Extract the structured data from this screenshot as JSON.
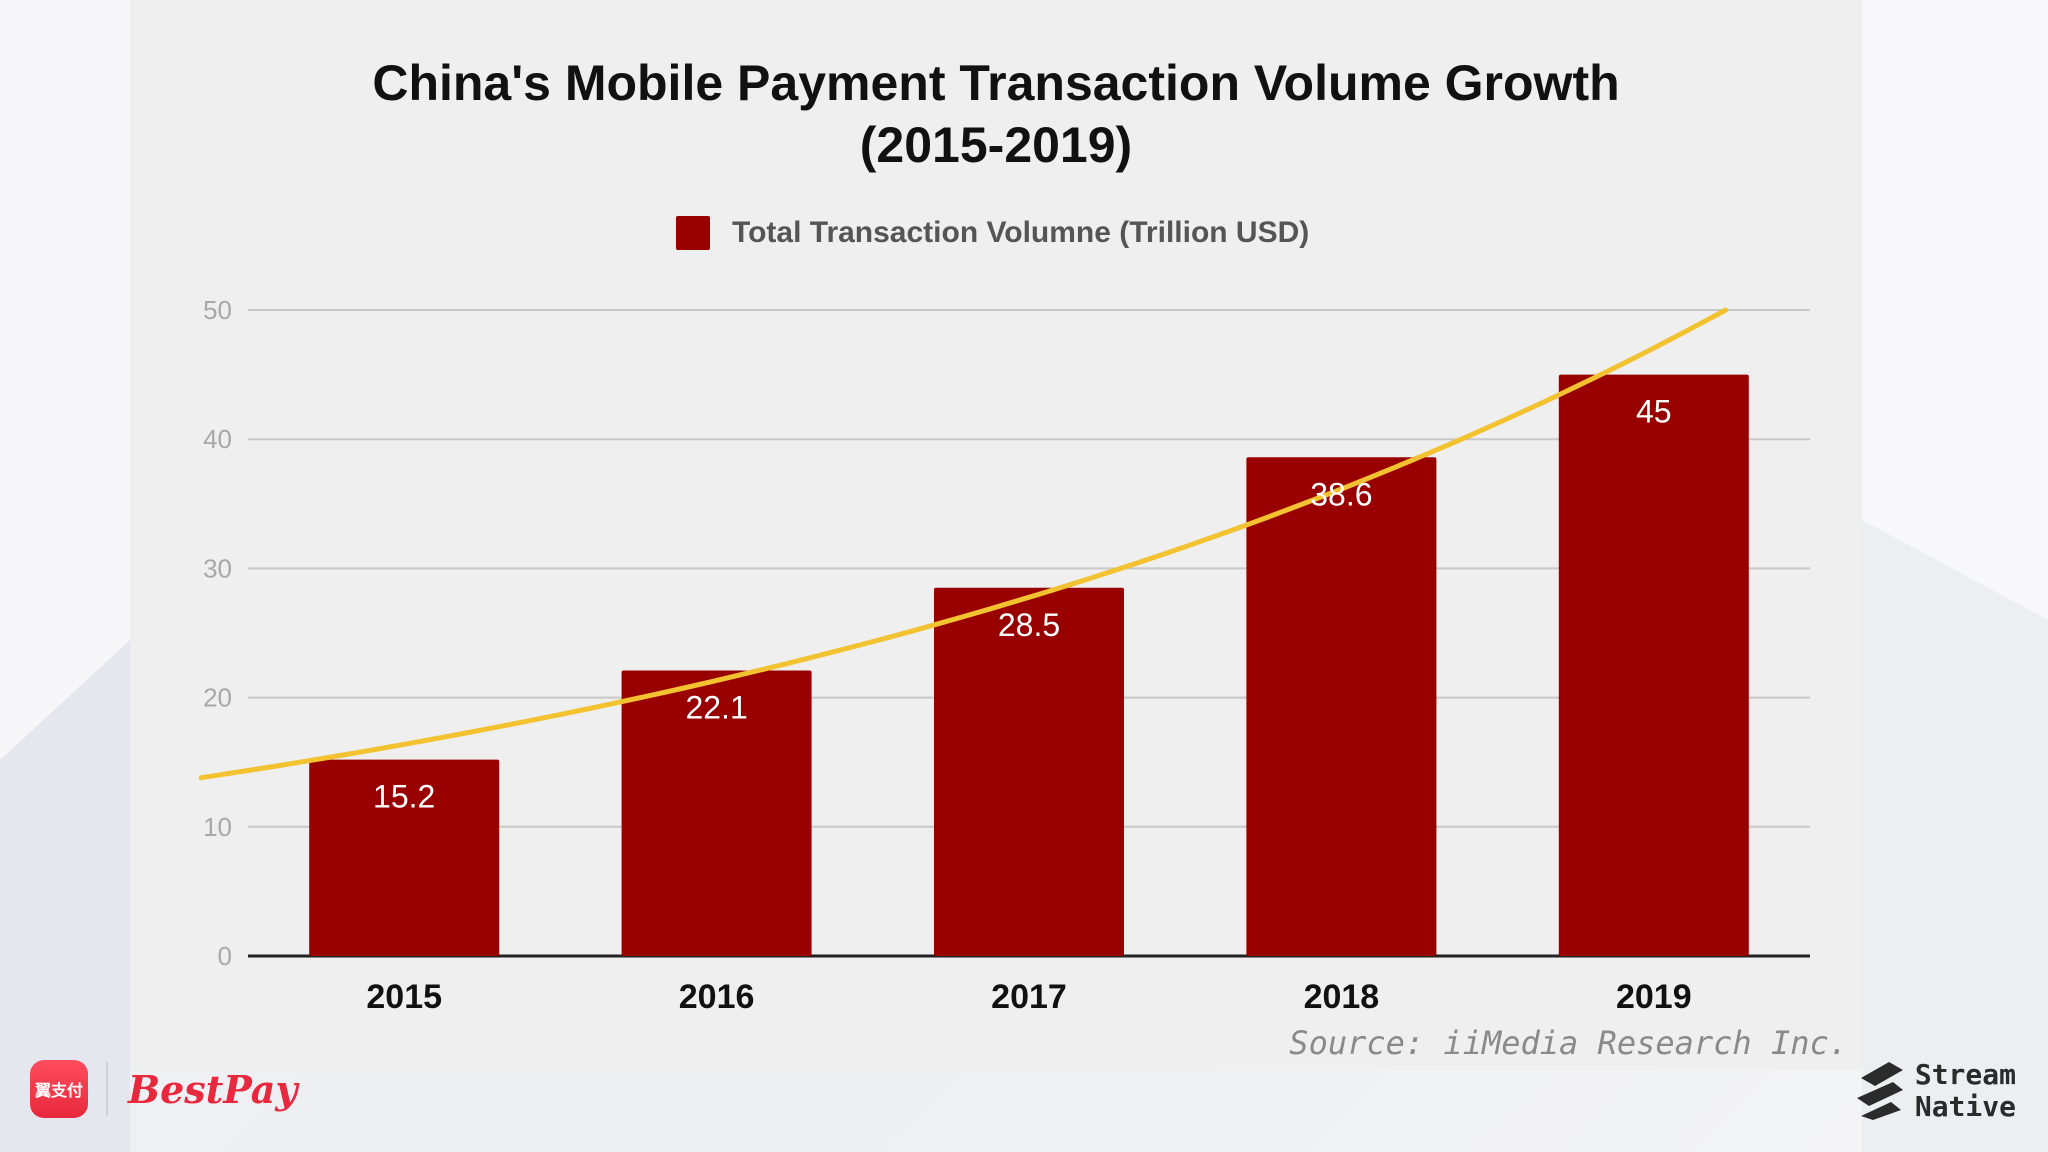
{
  "title_line1": "China's Mobile Payment Transaction Volume Growth",
  "title_line2": "(2015-2019)",
  "legend": {
    "label": "Total Transaction Volumne (Trillion USD)"
  },
  "source": "Source: iiMedia Research Inc.",
  "logos": {
    "bestpay_icon_text": "翼支付",
    "bestpay_wordmark": "BestPay",
    "streamnative_line1": "Stream",
    "streamnative_line2": "Native"
  },
  "colors": {
    "bar": "#990000",
    "trend": "#f2c230",
    "grid": "#c8c8c8",
    "axis": "#222222"
  },
  "chart_data": {
    "type": "bar",
    "title": "China's Mobile Payment Transaction Volume Growth (2015-2019)",
    "categories": [
      "2015",
      "2016",
      "2017",
      "2018",
      "2019"
    ],
    "series": [
      {
        "name": "Total Transaction Volumne (Trillion USD)",
        "values": [
          15.2,
          22.1,
          28.5,
          38.6,
          45
        ]
      }
    ],
    "data_labels": [
      "15.2",
      "22.1",
      "28.5",
      "38.6",
      "45"
    ],
    "ylim": [
      0,
      50
    ],
    "yticks": [
      0,
      10,
      20,
      30,
      40,
      50
    ],
    "grid": true,
    "legend_position": "top-center",
    "xlabel": "",
    "ylabel": "",
    "trendline": {
      "type": "exponential",
      "x_range": [
        2014.35,
        2019.23
      ],
      "y_at_start": 13.8,
      "y_at_end": 50
    }
  }
}
